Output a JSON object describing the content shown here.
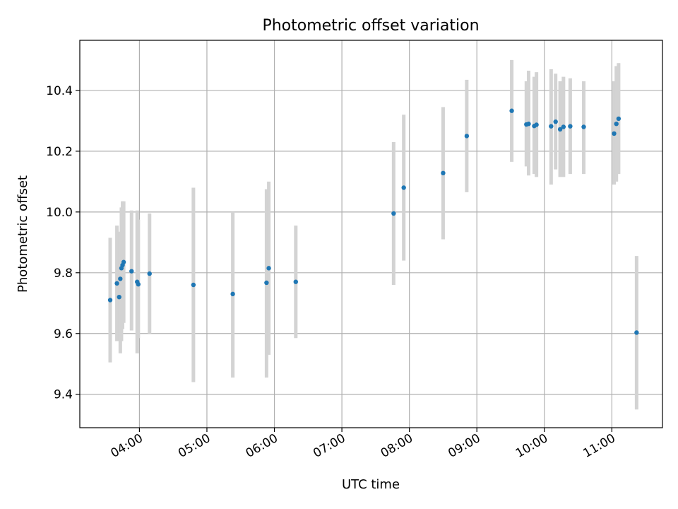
{
  "chart_data": {
    "type": "scatter",
    "title": "Photometric offset variation",
    "xlabel": "UTC time",
    "ylabel": "Photometric offset",
    "xlim": [
      "03:07",
      "11:45"
    ],
    "ylim": [
      9.29,
      10.565
    ],
    "grid": true,
    "x_ticks": [
      "04:00",
      "05:00",
      "06:00",
      "07:00",
      "08:00",
      "09:00",
      "10:00",
      "11:00"
    ],
    "y_ticks": [
      9.4,
      9.6,
      9.8,
      10.0,
      10.2,
      10.4
    ],
    "y_tick_labels": [
      "9.4",
      "9.6",
      "9.8",
      "10.0",
      "10.2",
      "10.4"
    ],
    "colors": {
      "point": "#1f77b4",
      "errorbar": "#d3d3d3",
      "grid": "#b0b0b0"
    },
    "series": [
      {
        "points": [
          {
            "x": "03:34",
            "y": 9.71,
            "err_low": 9.505,
            "err_high": 9.915
          },
          {
            "x": "03:40",
            "y": 9.765,
            "err_low": 9.575,
            "err_high": 9.955
          },
          {
            "x": "03:42",
            "y": 9.72,
            "err_low": 9.575,
            "err_high": 9.905
          },
          {
            "x": "03:43",
            "y": 9.78,
            "err_low": 9.535,
            "err_high": 9.935
          },
          {
            "x": "03:44",
            "y": 9.815,
            "err_low": 9.575,
            "err_high": 10.015
          },
          {
            "x": "03:45",
            "y": 9.825,
            "err_low": 9.615,
            "err_high": 10.035
          },
          {
            "x": "03:46",
            "y": 9.835,
            "err_low": 9.635,
            "err_high": 10.035
          },
          {
            "x": "03:53",
            "y": 9.805,
            "err_low": 9.61,
            "err_high": 10.005
          },
          {
            "x": "03:58",
            "y": 9.77,
            "err_low": 9.535,
            "err_high": 10.005
          },
          {
            "x": "03:59",
            "y": 9.762,
            "err_low": 9.585,
            "err_high": 9.975
          },
          {
            "x": "04:09",
            "y": 9.797,
            "err_low": 9.6,
            "err_high": 9.995
          },
          {
            "x": "04:48",
            "y": 9.76,
            "err_low": 9.44,
            "err_high": 10.08
          },
          {
            "x": "05:23",
            "y": 9.73,
            "err_low": 9.455,
            "err_high": 10.0
          },
          {
            "x": "05:53",
            "y": 9.767,
            "err_low": 9.455,
            "err_high": 10.075
          },
          {
            "x": "05:55",
            "y": 9.815,
            "err_low": 9.53,
            "err_high": 10.1
          },
          {
            "x": "06:19",
            "y": 9.77,
            "err_low": 9.585,
            "err_high": 9.955
          },
          {
            "x": "07:46",
            "y": 9.995,
            "err_low": 9.76,
            "err_high": 10.23
          },
          {
            "x": "07:55",
            "y": 10.08,
            "err_low": 9.84,
            "err_high": 10.32
          },
          {
            "x": "08:30",
            "y": 10.128,
            "err_low": 9.91,
            "err_high": 10.345
          },
          {
            "x": "08:51",
            "y": 10.25,
            "err_low": 10.065,
            "err_high": 10.435
          },
          {
            "x": "09:31",
            "y": 10.333,
            "err_low": 10.165,
            "err_high": 10.5
          },
          {
            "x": "09:44",
            "y": 10.288,
            "err_low": 10.15,
            "err_high": 10.43
          },
          {
            "x": "09:46",
            "y": 10.29,
            "err_low": 10.12,
            "err_high": 10.465
          },
          {
            "x": "09:51",
            "y": 10.283,
            "err_low": 10.125,
            "err_high": 10.445
          },
          {
            "x": "09:53",
            "y": 10.287,
            "err_low": 10.115,
            "err_high": 10.46
          },
          {
            "x": "10:06",
            "y": 10.282,
            "err_low": 10.09,
            "err_high": 10.47
          },
          {
            "x": "10:10",
            "y": 10.297,
            "err_low": 10.14,
            "err_high": 10.455
          },
          {
            "x": "10:14",
            "y": 10.272,
            "err_low": 10.115,
            "err_high": 10.43
          },
          {
            "x": "10:17",
            "y": 10.28,
            "err_low": 10.115,
            "err_high": 10.445
          },
          {
            "x": "10:23",
            "y": 10.282,
            "err_low": 10.125,
            "err_high": 10.44
          },
          {
            "x": "10:35",
            "y": 10.28,
            "err_low": 10.125,
            "err_high": 10.43
          },
          {
            "x": "11:02",
            "y": 10.258,
            "err_low": 10.09,
            "err_high": 10.43
          },
          {
            "x": "11:04",
            "y": 10.29,
            "err_low": 10.1,
            "err_high": 10.48
          },
          {
            "x": "11:06",
            "y": 10.307,
            "err_low": 10.125,
            "err_high": 10.49
          },
          {
            "x": "11:22",
            "y": 9.603,
            "err_low": 9.35,
            "err_high": 9.855
          }
        ]
      }
    ]
  }
}
